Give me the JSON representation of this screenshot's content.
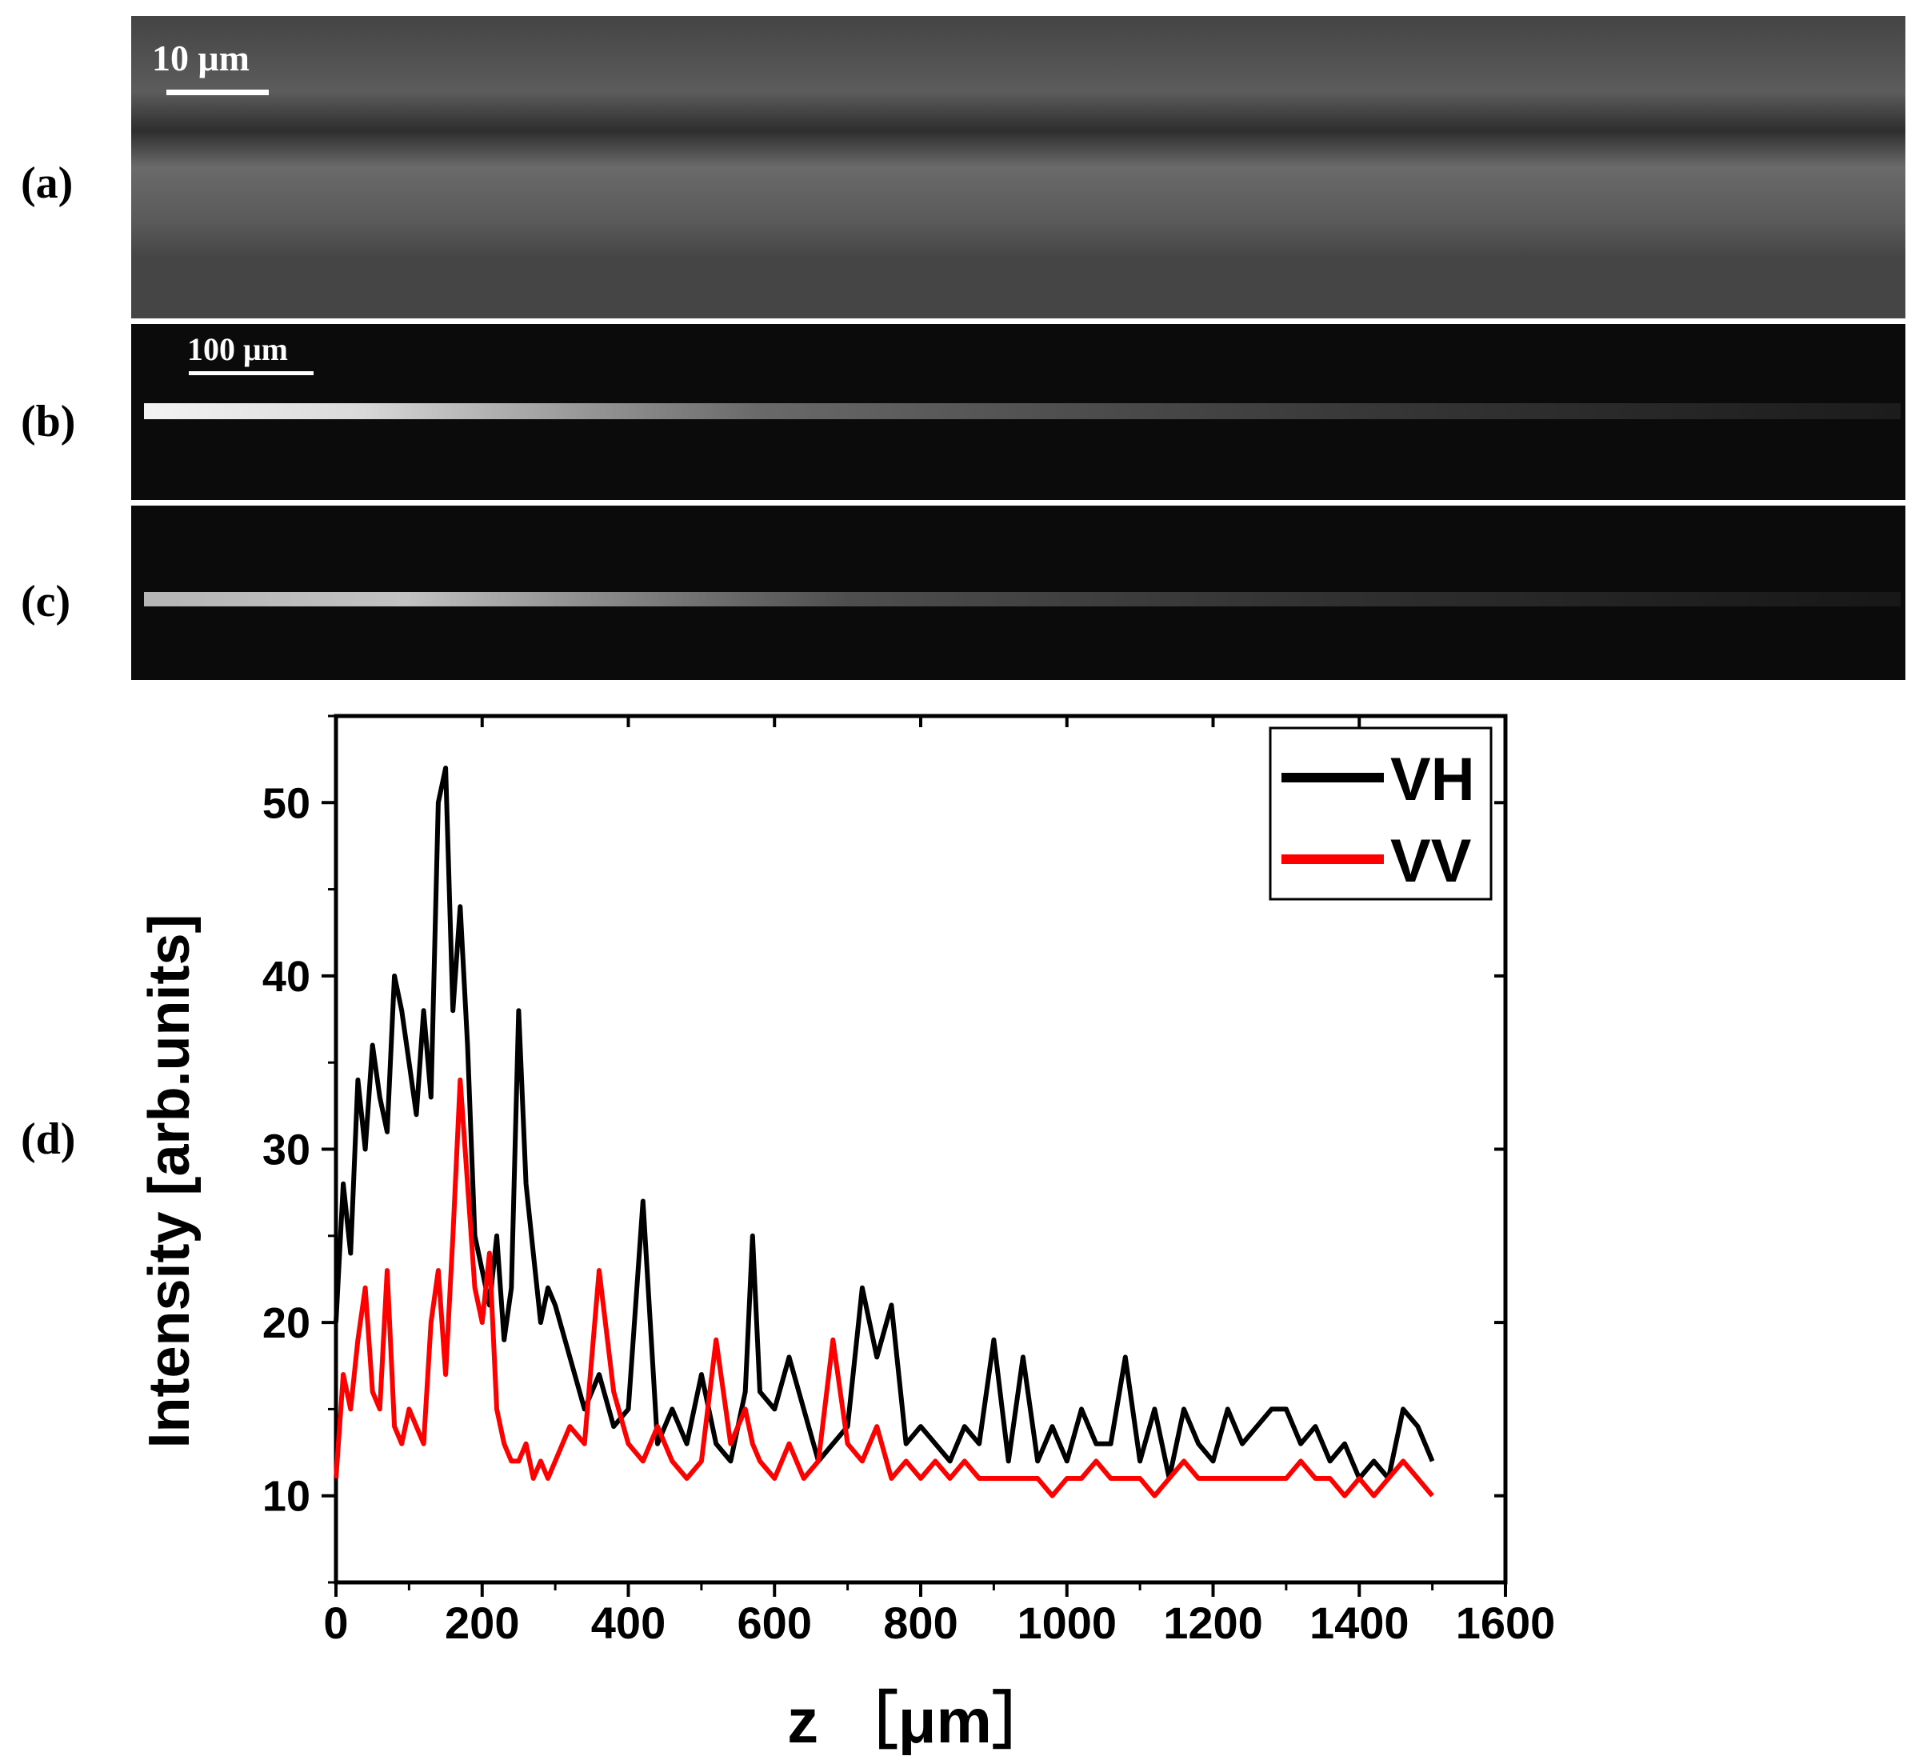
{
  "panels": [
    {
      "label": "(a)",
      "scalebar": "10 μm",
      "background": "#444444"
    },
    {
      "label": "(b)",
      "scalebar": "100 μm",
      "background": "#0b0b0b"
    },
    {
      "label": "(c)",
      "scalebar": "",
      "background": "#0b0b0b"
    }
  ],
  "chart_panel_label": "(d)",
  "chart_data": {
    "type": "line",
    "xlabel": "z ［μm］",
    "ylabel": "Intensity [arb.units]",
    "xlim": [
      0,
      1600
    ],
    "ylim": [
      5,
      55
    ],
    "xticks": [
      0,
      200,
      400,
      600,
      800,
      1000,
      1200,
      1400,
      1600
    ],
    "yticks": [
      10,
      20,
      30,
      40,
      50
    ],
    "legend_position": "top-right",
    "series": [
      {
        "name": "VH",
        "color": "#000000",
        "x": [
          0,
          10,
          20,
          30,
          40,
          50,
          60,
          70,
          80,
          90,
          100,
          110,
          120,
          130,
          140,
          150,
          160,
          170,
          180,
          190,
          200,
          210,
          220,
          230,
          240,
          250,
          260,
          270,
          280,
          290,
          300,
          320,
          340,
          360,
          380,
          400,
          420,
          440,
          460,
          480,
          500,
          520,
          540,
          560,
          570,
          580,
          600,
          620,
          640,
          660,
          680,
          700,
          720,
          740,
          760,
          780,
          800,
          820,
          840,
          860,
          880,
          900,
          920,
          940,
          960,
          980,
          1000,
          1020,
          1040,
          1060,
          1080,
          1100,
          1120,
          1140,
          1160,
          1180,
          1200,
          1220,
          1240,
          1260,
          1280,
          1300,
          1320,
          1340,
          1360,
          1380,
          1400,
          1420,
          1440,
          1460,
          1480,
          1500
        ],
        "y": [
          20,
          28,
          24,
          34,
          30,
          36,
          33,
          31,
          40,
          38,
          35,
          32,
          38,
          33,
          50,
          52,
          38,
          44,
          36,
          25,
          23,
          21,
          25,
          19,
          22,
          38,
          28,
          24,
          20,
          22,
          21,
          18,
          15,
          17,
          14,
          15,
          27,
          13,
          15,
          13,
          17,
          13,
          12,
          16,
          25,
          16,
          15,
          18,
          15,
          12,
          13,
          14,
          22,
          18,
          21,
          13,
          14,
          13,
          12,
          14,
          13,
          19,
          12,
          18,
          12,
          14,
          12,
          15,
          13,
          13,
          18,
          12,
          15,
          11,
          15,
          13,
          12,
          15,
          13,
          14,
          15,
          15,
          13,
          14,
          12,
          13,
          11,
          12,
          11,
          15,
          14,
          12
        ]
      },
      {
        "name": "VV",
        "color": "#ff0000",
        "x": [
          0,
          10,
          20,
          30,
          40,
          50,
          60,
          70,
          80,
          90,
          100,
          110,
          120,
          130,
          140,
          150,
          160,
          170,
          180,
          190,
          200,
          210,
          220,
          230,
          240,
          250,
          260,
          270,
          280,
          290,
          300,
          320,
          340,
          360,
          380,
          400,
          420,
          440,
          460,
          480,
          500,
          520,
          540,
          560,
          570,
          580,
          600,
          620,
          640,
          660,
          680,
          700,
          720,
          740,
          760,
          780,
          800,
          820,
          840,
          860,
          880,
          900,
          920,
          940,
          960,
          980,
          1000,
          1020,
          1040,
          1060,
          1080,
          1100,
          1120,
          1140,
          1160,
          1180,
          1200,
          1220,
          1240,
          1260,
          1280,
          1300,
          1320,
          1340,
          1360,
          1380,
          1400,
          1420,
          1440,
          1460,
          1480,
          1500
        ],
        "y": [
          11,
          17,
          15,
          19,
          22,
          16,
          15,
          23,
          14,
          13,
          15,
          14,
          13,
          20,
          23,
          17,
          25,
          34,
          28,
          22,
          20,
          24,
          15,
          13,
          12,
          12,
          13,
          11,
          12,
          11,
          12,
          14,
          13,
          23,
          16,
          13,
          12,
          14,
          12,
          11,
          12,
          19,
          13,
          15,
          13,
          12,
          11,
          13,
          11,
          12,
          19,
          13,
          12,
          14,
          11,
          12,
          11,
          12,
          11,
          12,
          11,
          11,
          11,
          11,
          11,
          10,
          11,
          11,
          12,
          11,
          11,
          11,
          10,
          11,
          12,
          11,
          11,
          11,
          11,
          11,
          11,
          11,
          12,
          11,
          11,
          10,
          11,
          10,
          11,
          12,
          11,
          10
        ]
      }
    ]
  }
}
